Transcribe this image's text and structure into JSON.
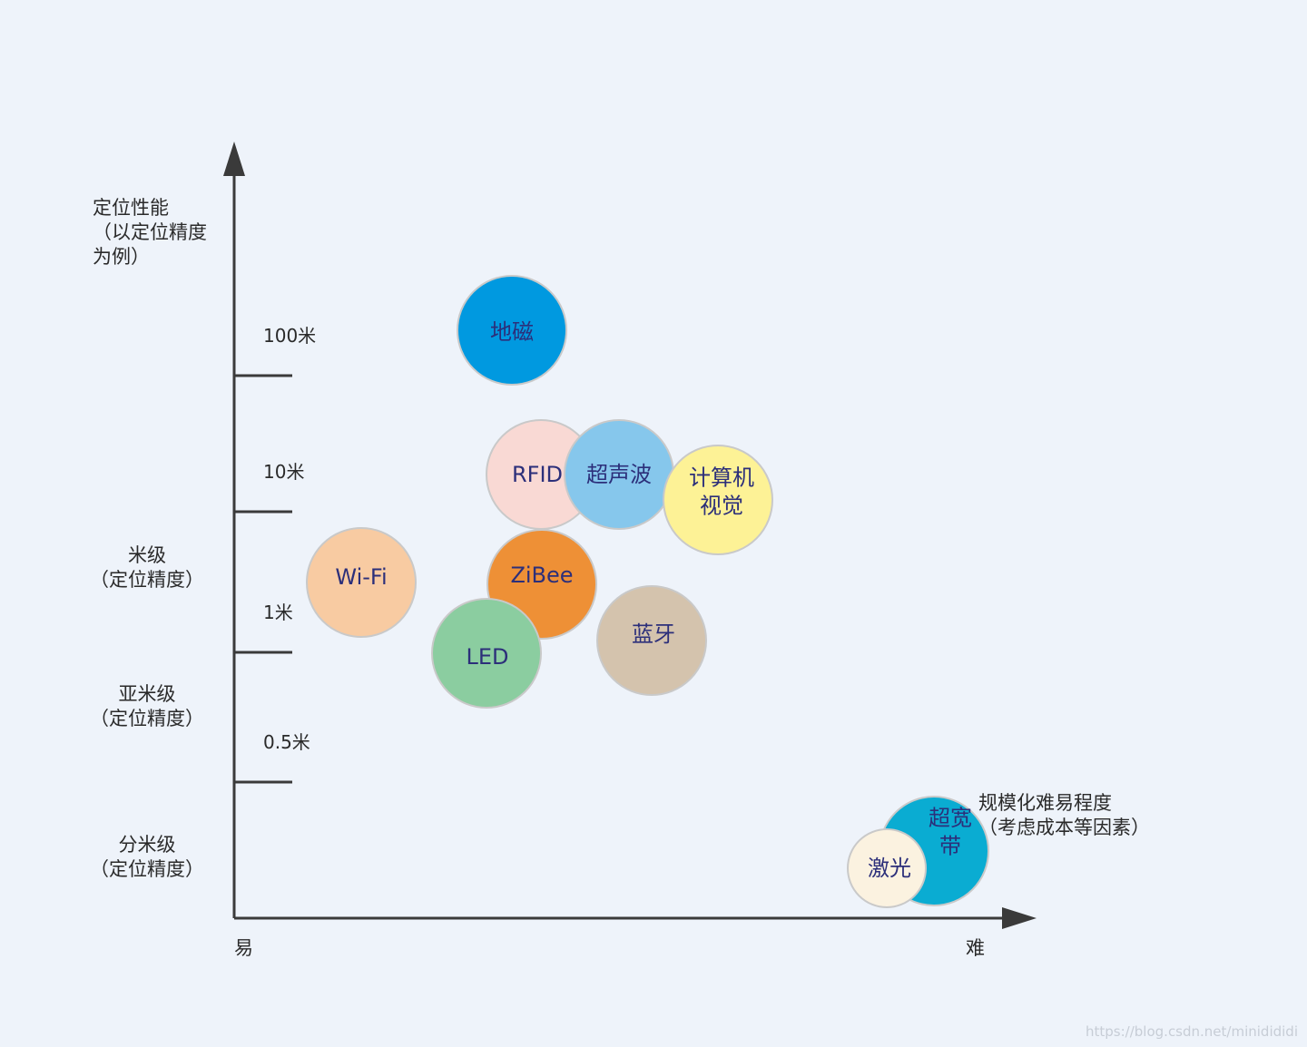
{
  "chart_data": {
    "type": "scatter",
    "title": "",
    "ylabel": [
      "定位性能",
      "（以定位精度",
      "为例）"
    ],
    "xlabel": [
      "规模化难易程度",
      "（考虑成本等因素）"
    ],
    "x_axis": {
      "start_label": "易",
      "end_label": "难"
    },
    "y_ticks": [
      "100米",
      "10米",
      "1米",
      "0.5米"
    ],
    "y_bands": [
      {
        "lines": [
          "米级",
          "（定位精度）"
        ]
      },
      {
        "lines": [
          "亚米级",
          "（定位精度）"
        ]
      },
      {
        "lines": [
          "分米级",
          "（定位精度）"
        ]
      }
    ],
    "series": [
      {
        "lines": [
          "RFID"
        ],
        "color": "#f9d9d4"
      },
      {
        "lines": [
          "地磁"
        ],
        "color": "#0099e0"
      },
      {
        "lines": [
          "超声波"
        ],
        "color": "#86c7ec"
      },
      {
        "lines": [
          "计算机",
          "视觉"
        ],
        "color": "#fdf296"
      },
      {
        "lines": [
          "Wi-Fi"
        ],
        "color": "#f8cba2"
      },
      {
        "lines": [
          "ZiBee"
        ],
        "color": "#ee9036"
      },
      {
        "lines": [
          "蓝牙"
        ],
        "color": "#d4c3ad"
      },
      {
        "lines": [
          "LED"
        ],
        "color": "#8bcda0"
      },
      {
        "lines": [
          "超宽",
          "带"
        ],
        "color": "#0aacd2"
      },
      {
        "lines": [
          "激光"
        ],
        "color": "#fbf2e0"
      }
    ],
    "colors": {
      "axis": "#3a3a3a",
      "bubble_text": "#2c2f7a",
      "bubble_stroke": "#c9c9c9"
    }
  },
  "watermark": "https://blog.csdn.net/minidididi"
}
